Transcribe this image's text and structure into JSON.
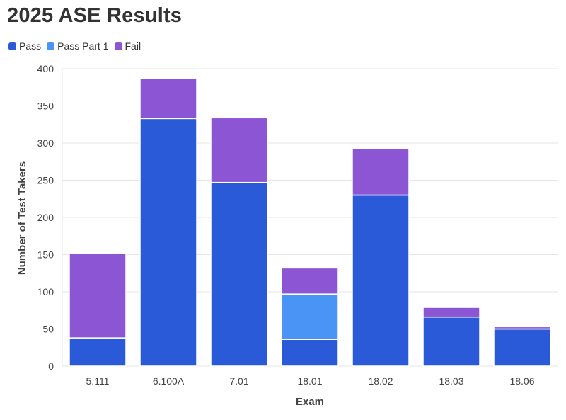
{
  "chart_data": {
    "type": "bar",
    "stacked": true,
    "title": "2025 ASE Results",
    "xlabel": "Exam",
    "ylabel": "Number of Test Takers",
    "ylim": [
      0,
      400
    ],
    "yticks": [
      0,
      50,
      100,
      150,
      200,
      250,
      300,
      350,
      400
    ],
    "categories": [
      "5.111",
      "6.100A",
      "7.01",
      "18.01",
      "18.02",
      "18.03",
      "18.06"
    ],
    "series": [
      {
        "name": "Pass",
        "color": "#2b5ad9",
        "values": [
          38,
          333,
          247,
          36,
          230,
          66,
          50
        ]
      },
      {
        "name": "Pass Part 1",
        "color": "#4a94f5",
        "values": [
          0,
          0,
          0,
          61,
          0,
          0,
          0
        ]
      },
      {
        "name": "Fail",
        "color": "#8b55d4",
        "values": [
          114,
          54,
          87,
          35,
          63,
          13,
          3
        ]
      }
    ],
    "legend_position": "top-left",
    "grid": true
  }
}
